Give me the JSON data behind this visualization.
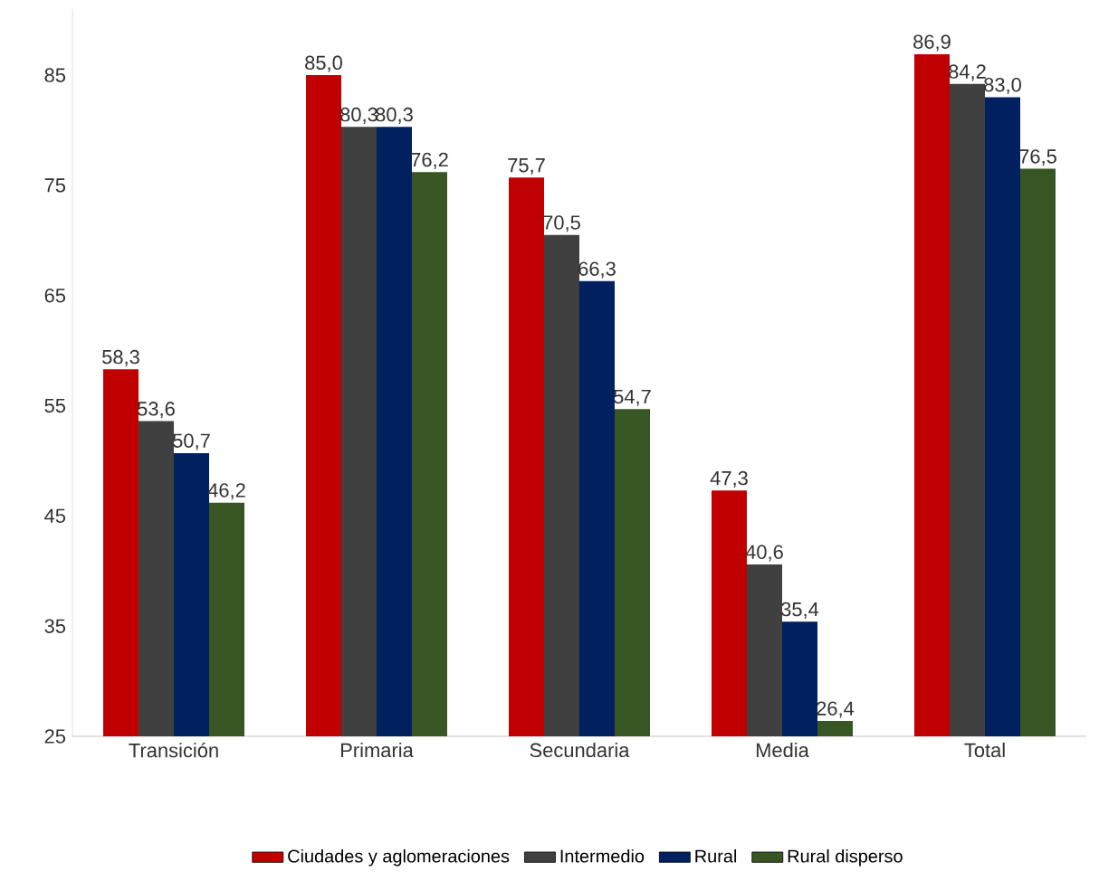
{
  "chart_data": {
    "type": "bar",
    "categories": [
      "Transición",
      "Primaria",
      "Secundaria",
      "Media",
      "Total"
    ],
    "series": [
      {
        "name": "Ciudades y aglomeraciones",
        "color": "#c00000",
        "values": [
          58.3,
          85.0,
          75.7,
          47.3,
          86.9
        ],
        "value_labels": [
          "58,3",
          "85,0",
          "75,7",
          "47,3",
          "86,9"
        ]
      },
      {
        "name": "Intermedio",
        "color": "#404040",
        "values": [
          53.6,
          80.3,
          70.5,
          40.6,
          84.2
        ],
        "value_labels": [
          "53,6",
          "80,3",
          "70,5",
          "40,6",
          "84,2"
        ]
      },
      {
        "name": "Rural",
        "color": "#002060",
        "values": [
          50.7,
          80.3,
          66.3,
          35.4,
          83.0
        ],
        "value_labels": [
          "50,7",
          "80,3",
          "66,3",
          "35,4",
          "83,0"
        ]
      },
      {
        "name": "Rural disperso",
        "color": "#375623",
        "values": [
          46.2,
          76.2,
          54.7,
          26.4,
          76.5
        ],
        "value_labels": [
          "46,2",
          "76,2",
          "54,7",
          "26,4",
          "76,5"
        ]
      }
    ],
    "ylim": [
      25,
      91
    ],
    "yticks": [
      25,
      35,
      45,
      55,
      65,
      75,
      85
    ],
    "legend": "bottom"
  }
}
